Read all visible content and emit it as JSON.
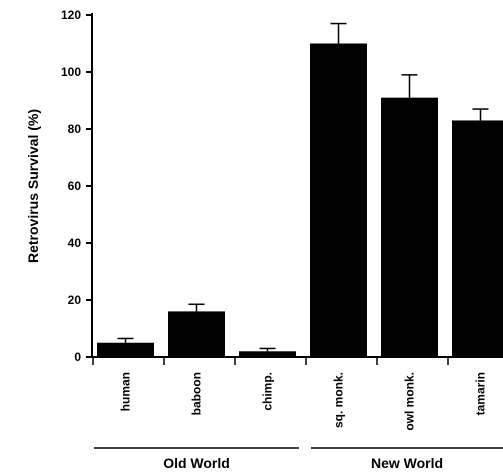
{
  "chart_data": {
    "type": "bar",
    "title": "",
    "xlabel": "",
    "ylabel": "Retrovirus  Survival  (%)",
    "ylim": [
      0,
      120
    ],
    "yticks": [
      0,
      20,
      40,
      60,
      80,
      100,
      120
    ],
    "grid": false,
    "categories": [
      "human",
      "baboon",
      "chimp.",
      "sq. monk.",
      "owl monk.",
      "tamarin"
    ],
    "values": [
      5,
      16,
      2,
      110,
      91,
      83
    ],
    "error": [
      1.5,
      2.5,
      1,
      7,
      8,
      4
    ],
    "groups": [
      {
        "label": "Old  World",
        "categories": [
          "human",
          "baboon",
          "chimp."
        ]
      },
      {
        "label": "New  World",
        "categories": [
          "sq. monk.",
          "owl monk.",
          "tamarin"
        ]
      }
    ],
    "bar_color": "#000000",
    "axis_color": "#000000"
  }
}
